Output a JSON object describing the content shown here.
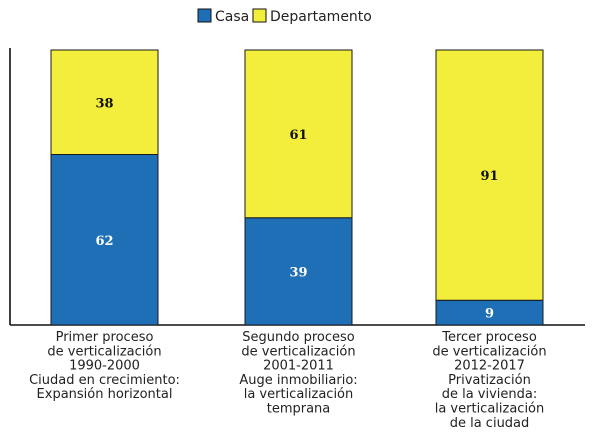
{
  "chart_data": {
    "type": "bar",
    "stacked": true,
    "orientation": "vertical",
    "ylim": [
      0,
      100
    ],
    "grid": false,
    "legend_position": "top-center",
    "categories": [
      [
        "Primer proceso",
        "de verticalización",
        "1990-2000",
        "Ciudad en crecimiento:",
        "Expansión horizontal"
      ],
      [
        "Segundo proceso",
        "de verticalización",
        "2001-2011",
        "Auge inmobiliario:",
        "la verticalización",
        "temprana"
      ],
      [
        "Tercer proceso",
        "de verticalización",
        "2012-2017",
        "Privatización",
        "de la vivienda:",
        "la verticalización",
        "de la ciudad"
      ]
    ],
    "series": [
      {
        "name": "Casa",
        "color": "#1f6fb6",
        "values": [
          62,
          39,
          9
        ]
      },
      {
        "name": "Departamento",
        "color": "#f3ee3b",
        "values": [
          38,
          61,
          91
        ]
      }
    ]
  }
}
